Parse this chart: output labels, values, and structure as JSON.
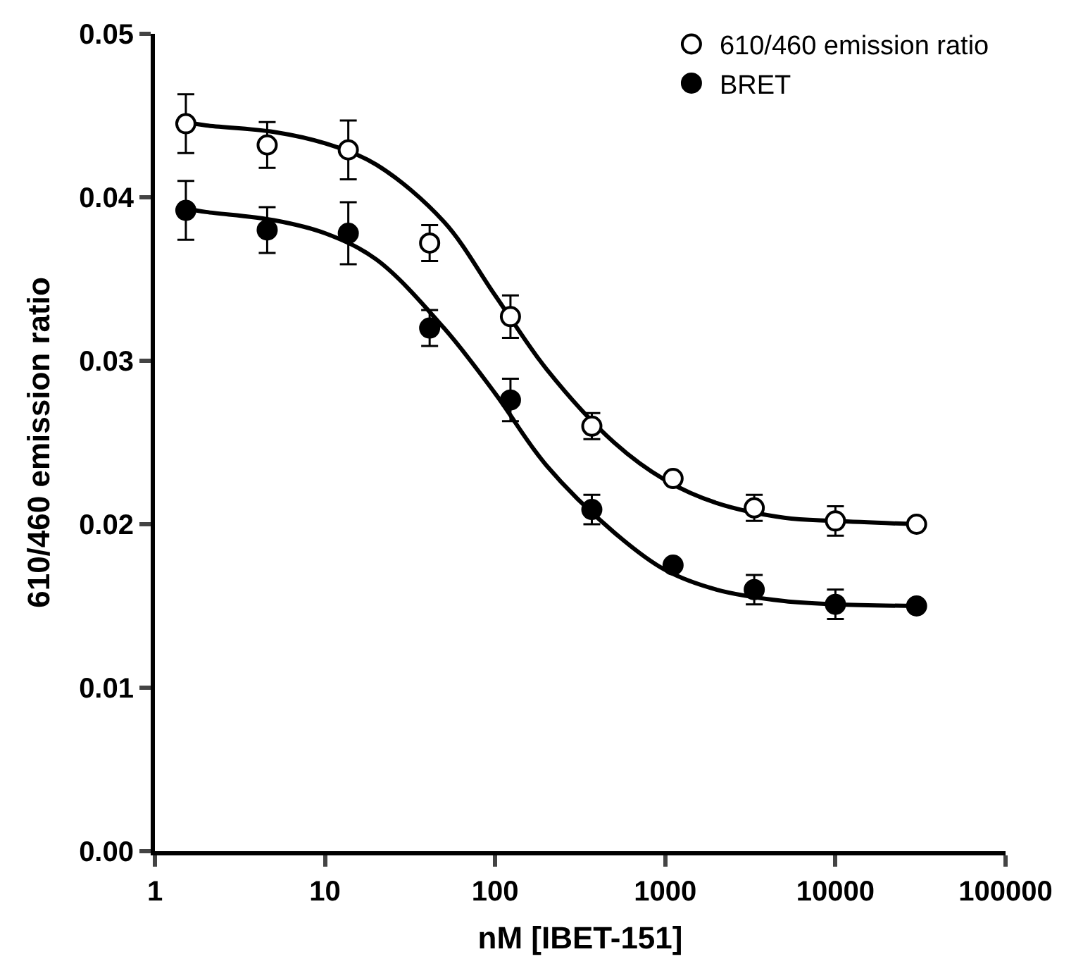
{
  "chart_data": {
    "type": "scatter",
    "xlabel": "nM [IBET-151]",
    "ylabel": "610/460 emission ratio",
    "x": [
      1.52,
      4.57,
      13.7,
      41.2,
      123,
      370,
      1111,
      3333,
      10000,
      30000
    ],
    "series": [
      {
        "name": "610/460 emission ratio",
        "color": "#ffffff",
        "marker": "circle",
        "values": [
          0.0445,
          0.0432,
          0.0429,
          0.0372,
          0.0327,
          0.026,
          0.0228,
          0.021,
          0.0202,
          0.02
        ],
        "errors": [
          0.0018,
          0.0014,
          0.0018,
          0.0011,
          0.0013,
          0.0008,
          0.0003,
          0.0008,
          0.0009,
          0.0003
        ]
      },
      {
        "name": "BRET",
        "color": "#000000",
        "marker": "circle",
        "values": [
          0.0392,
          0.038,
          0.0378,
          0.032,
          0.0276,
          0.0209,
          0.0175,
          0.016,
          0.0151,
          0.015
        ],
        "errors": [
          0.0018,
          0.0014,
          0.0019,
          0.0011,
          0.0013,
          0.0009,
          0.0003,
          0.0009,
          0.0009,
          0.0003
        ]
      },
      {
        "type": "line",
        "color": "#000000",
        "x": [
          1.52,
          2,
          5,
          10,
          20,
          50,
          100,
          200,
          500,
          1000,
          2000,
          5000,
          10000,
          30000
        ],
        "values": [
          0.0446,
          0.0444,
          0.044,
          0.0433,
          0.042,
          0.0385,
          0.034,
          0.0295,
          0.025,
          0.0227,
          0.0213,
          0.0204,
          0.0202,
          0.02
        ]
      },
      {
        "type": "line",
        "color": "#000000",
        "x": [
          1.52,
          2,
          5,
          10,
          20,
          50,
          100,
          200,
          500,
          1000,
          2000,
          5000,
          10000,
          30000
        ],
        "values": [
          0.0393,
          0.0391,
          0.0386,
          0.0378,
          0.0362,
          0.032,
          0.028,
          0.0236,
          0.0195,
          0.0172,
          0.016,
          0.0153,
          0.0151,
          0.015
        ]
      }
    ],
    "log": "x",
    "xlim": [
      1,
      100000
    ],
    "xticks": [
      1,
      10,
      100,
      1000,
      10000,
      100000
    ],
    "ylim": [
      0,
      0.05
    ],
    "yticks": [
      {
        "value": 0,
        "label": "0.00"
      },
      {
        "value": 0.01,
        "label": "0.01"
      },
      {
        "value": 0.02,
        "label": "0.02"
      },
      {
        "value": 0.03,
        "label": "0.03"
      },
      {
        "value": 0.04,
        "label": "0.04"
      },
      {
        "value": 0.05,
        "label": "0.05"
      }
    ],
    "legend": "top right",
    "line_style": "solid"
  }
}
